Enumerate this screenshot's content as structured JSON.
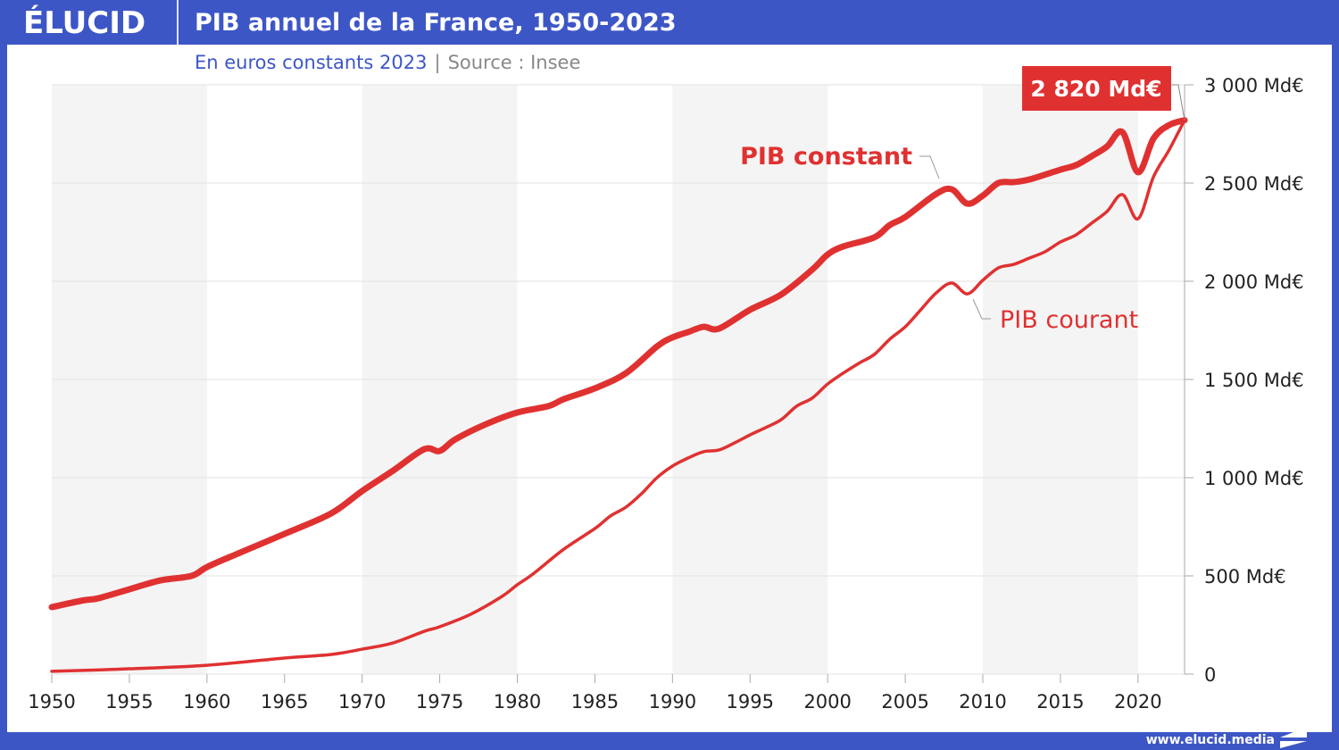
{
  "header": {
    "logo": "ÉLUCID",
    "title": "PIB annuel de la France, 1950-2023"
  },
  "subtitle": {
    "main": "En euros constants 2023",
    "separator": "|",
    "source": "Source : Insee"
  },
  "footer": {
    "url": "www.elucid.media"
  },
  "colors": {
    "frame": "#3d56c6",
    "series": "#e03131",
    "band": "#f4f4f4"
  },
  "chart_data": {
    "type": "line",
    "title": "PIB annuel de la France, 1950-2023",
    "xlim": [
      1950,
      2023
    ],
    "ylim": [
      0,
      3000
    ],
    "x_ticks": [
      "1950",
      "1955",
      "1960",
      "1965",
      "1970",
      "1975",
      "1980",
      "1985",
      "1990",
      "1995",
      "2000",
      "2005",
      "2010",
      "2015",
      "2020"
    ],
    "y_ticks": [
      {
        "value": 0,
        "label": "0"
      },
      {
        "value": 500,
        "label": "500 Md€"
      },
      {
        "value": 1000,
        "label": "1 000 Md€"
      },
      {
        "value": 1500,
        "label": "1 500 Md€"
      },
      {
        "value": 2000,
        "label": "2 000 Md€"
      },
      {
        "value": 2500,
        "label": "2 500 Md€"
      },
      {
        "value": 3000,
        "label": "3 000 Md€"
      }
    ],
    "y_axis_position": "right",
    "grid": "horizontal",
    "shaded_decades": [
      [
        1950,
        1960
      ],
      [
        1970,
        1980
      ],
      [
        1990,
        2000
      ],
      [
        2010,
        2020
      ]
    ],
    "annotation": {
      "label": "2 820 Md€",
      "x": 2023,
      "y": 2820
    },
    "series": [
      {
        "name": "PIB constant",
        "points": [
          [
            1950,
            341
          ],
          [
            1952,
            375
          ],
          [
            1953,
            386
          ],
          [
            1955,
            432
          ],
          [
            1957,
            477
          ],
          [
            1959,
            500
          ],
          [
            1960,
            545
          ],
          [
            1962,
            614
          ],
          [
            1965,
            714
          ],
          [
            1968,
            818
          ],
          [
            1970,
            932
          ],
          [
            1972,
            1036
          ],
          [
            1974,
            1145
          ],
          [
            1975,
            1136
          ],
          [
            1976,
            1195
          ],
          [
            1978,
            1273
          ],
          [
            1980,
            1332
          ],
          [
            1982,
            1364
          ],
          [
            1983,
            1400
          ],
          [
            1985,
            1455
          ],
          [
            1987,
            1532
          ],
          [
            1989,
            1668
          ],
          [
            1990,
            1714
          ],
          [
            1991,
            1741
          ],
          [
            1992,
            1768
          ],
          [
            1993,
            1759
          ],
          [
            1995,
            1855
          ],
          [
            1997,
            1932
          ],
          [
            1999,
            2059
          ],
          [
            2000,
            2136
          ],
          [
            2001,
            2177
          ],
          [
            2003,
            2223
          ],
          [
            2004,
            2286
          ],
          [
            2005,
            2327
          ],
          [
            2007,
            2445
          ],
          [
            2008,
            2468
          ],
          [
            2009,
            2395
          ],
          [
            2010,
            2436
          ],
          [
            2011,
            2500
          ],
          [
            2012,
            2505
          ],
          [
            2013,
            2518
          ],
          [
            2015,
            2568
          ],
          [
            2016,
            2591
          ],
          [
            2017,
            2636
          ],
          [
            2018,
            2686
          ],
          [
            2019,
            2759
          ],
          [
            2020,
            2555
          ],
          [
            2021,
            2727
          ],
          [
            2022,
            2795
          ],
          [
            2023,
            2820
          ]
        ]
      },
      {
        "name": "PIB courant",
        "points": [
          [
            1950,
            14
          ],
          [
            1955,
            27
          ],
          [
            1960,
            45
          ],
          [
            1965,
            82
          ],
          [
            1968,
            100
          ],
          [
            1970,
            127
          ],
          [
            1972,
            159
          ],
          [
            1974,
            218
          ],
          [
            1975,
            241
          ],
          [
            1977,
            305
          ],
          [
            1979,
            395
          ],
          [
            1980,
            455
          ],
          [
            1981,
            509
          ],
          [
            1983,
            636
          ],
          [
            1985,
            741
          ],
          [
            1986,
            805
          ],
          [
            1987,
            850
          ],
          [
            1988,
            918
          ],
          [
            1989,
            1000
          ],
          [
            1990,
            1059
          ],
          [
            1991,
            1100
          ],
          [
            1992,
            1132
          ],
          [
            1993,
            1141
          ],
          [
            1994,
            1177
          ],
          [
            1995,
            1218
          ],
          [
            1996,
            1255
          ],
          [
            1997,
            1295
          ],
          [
            1998,
            1364
          ],
          [
            1999,
            1405
          ],
          [
            2000,
            1477
          ],
          [
            2001,
            1532
          ],
          [
            2002,
            1582
          ],
          [
            2003,
            1627
          ],
          [
            2004,
            1705
          ],
          [
            2005,
            1768
          ],
          [
            2006,
            1855
          ],
          [
            2007,
            1941
          ],
          [
            2008,
            1991
          ],
          [
            2009,
            1936
          ],
          [
            2010,
            2005
          ],
          [
            2011,
            2068
          ],
          [
            2012,
            2086
          ],
          [
            2013,
            2118
          ],
          [
            2014,
            2150
          ],
          [
            2015,
            2200
          ],
          [
            2016,
            2236
          ],
          [
            2017,
            2295
          ],
          [
            2018,
            2355
          ],
          [
            2019,
            2441
          ],
          [
            2020,
            2318
          ],
          [
            2021,
            2532
          ],
          [
            2022,
            2668
          ],
          [
            2023,
            2820
          ]
        ]
      }
    ]
  }
}
